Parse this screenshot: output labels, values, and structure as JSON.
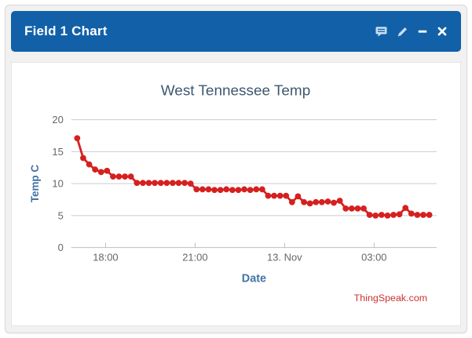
{
  "window": {
    "header": {
      "title": "Field 1 Chart",
      "icons": [
        {
          "name": "annotation-icon"
        },
        {
          "name": "edit-icon"
        },
        {
          "name": "collapse-icon"
        },
        {
          "name": "close-icon"
        }
      ]
    }
  },
  "colors": {
    "header_bg": "#1261a8",
    "header_text": "#ffffff",
    "header_icon_blue": "#c9ddf2",
    "header_icon_white": "#ffffff",
    "panel_bg": "#f1f1f1",
    "panel_border": "#d9d9d9",
    "card_bg": "#ffffff",
    "card_border": "#e4e4e4",
    "chart_title": "#3e576f",
    "axis_title": "#4572a7",
    "tick_label": "#666666",
    "gridline": "#cccccc",
    "axis_line": "#b7bfc9",
    "series": "#d62020",
    "credits": "#cc3333"
  },
  "chart_data": {
    "type": "line",
    "title": "West Tennessee Temp",
    "xlabel": "Date",
    "ylabel": "Temp C",
    "credits": "ThingSpeak.com",
    "legend": "none",
    "grid": "horizontal",
    "marker": "circle",
    "ylim": [
      0,
      20
    ],
    "y_ticks": [
      0,
      5,
      10,
      15,
      20
    ],
    "x_range_hours": [
      16.85,
      29.1
    ],
    "x_ticks": [
      {
        "hour": 18,
        "label": "18:00"
      },
      {
        "hour": 21,
        "label": "21:00"
      },
      {
        "hour": 24,
        "label": "13. Nov"
      },
      {
        "hour": 27,
        "label": "03:00"
      }
    ],
    "x_start_hour": 17.05,
    "x_step_hours": 0.2,
    "values": [
      17.1,
      14,
      13,
      12.2,
      11.8,
      12,
      11.1,
      11.1,
      11.1,
      11.1,
      10.1,
      10.1,
      10.1,
      10.1,
      10.1,
      10.1,
      10.1,
      10.1,
      10.1,
      10,
      9.1,
      9.1,
      9.1,
      9,
      9,
      9.1,
      9,
      9,
      9.1,
      9,
      9.1,
      9.1,
      8.1,
      8.1,
      8.1,
      8.1,
      7.1,
      8,
      7.1,
      6.9,
      7.1,
      7.1,
      7.2,
      7,
      7.3,
      6.1,
      6.1,
      6.1,
      6.1,
      5.1,
      5,
      5.1,
      5,
      5.1,
      5.2,
      6.2,
      5.3,
      5.1,
      5.1,
      5.1
    ]
  }
}
